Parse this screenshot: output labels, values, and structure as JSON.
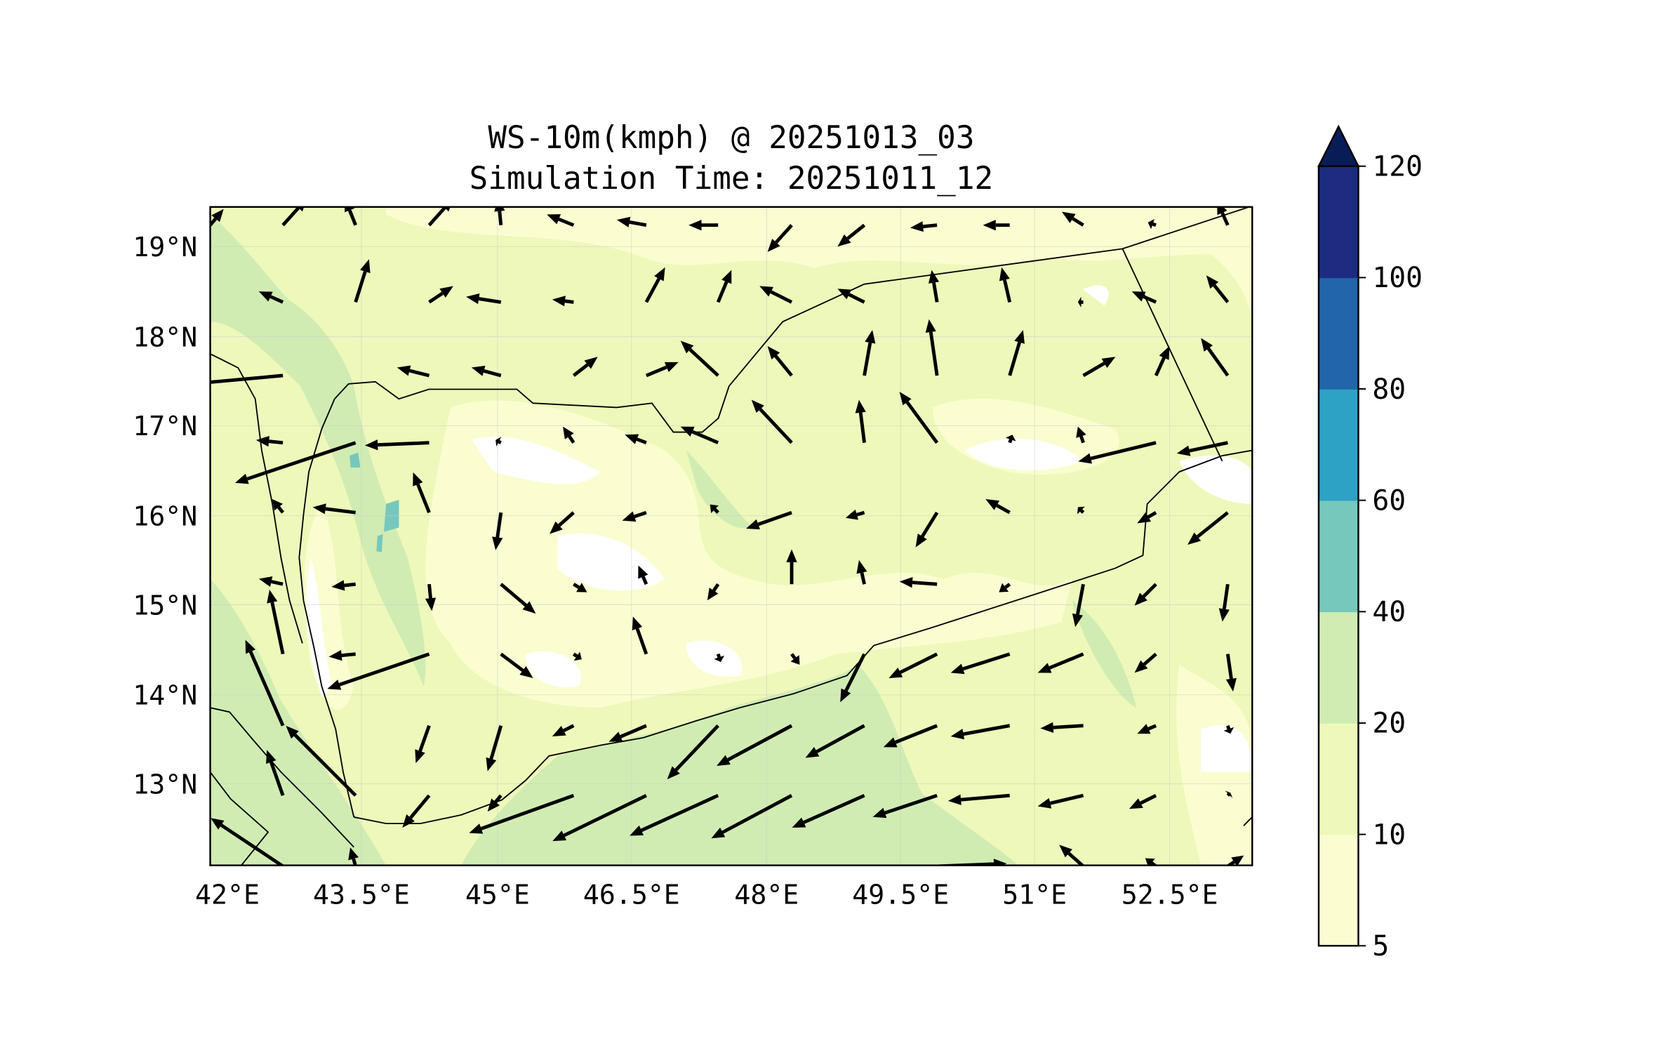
{
  "chart_data": {
    "type": "heatmap",
    "title_line1": "WS-10m(kmph) @ 20251013_03",
    "title_line2": "Simulation Time: 20251011_12",
    "xlabel": "",
    "ylabel": "",
    "xlim": [
      42.0,
      53.6
    ],
    "ylim": [
      12.09,
      19.44
    ],
    "grid": true,
    "x_ticks": [
      42,
      43.5,
      45,
      46.5,
      48,
      49.5,
      51,
      52.5
    ],
    "x_tick_labels": [
      "42°E",
      "43.5°E",
      "45°E",
      "46.5°E",
      "48°E",
      "49.5°E",
      "51°E",
      "52.5°E"
    ],
    "y_ticks": [
      19,
      18,
      17,
      16,
      15,
      14,
      13
    ],
    "y_tick_labels": [
      "19°N",
      "18°N",
      "17°N",
      "16°N",
      "15°N",
      "14°N",
      "13°N"
    ],
    "colorbar": {
      "levels": [
        5,
        10,
        20,
        40,
        60,
        80,
        100,
        120
      ],
      "tick_labels": [
        "5",
        "10",
        "20",
        "40",
        "60",
        "80",
        "100",
        "120"
      ],
      "colors": [
        "#fbfdd0",
        "#eef8ba",
        "#d0ecb3",
        "#76c8bc",
        "#2da2c4",
        "#2265aa",
        "#1d2c80"
      ],
      "extend_max_color": "#081d58",
      "extend": "max",
      "placement": "right"
    },
    "field_colors": {
      "below_5": "#ffffff",
      "5_10": "#fbfdd0",
      "10_20": "#eef8ba",
      "20_40": "#d0ecb3",
      "40_60": "#76c8bc"
    },
    "quiver": {
      "units": "kmph (approx.)",
      "lons": [
        42.0,
        42.81,
        43.62,
        44.44,
        45.24,
        46.05,
        46.86,
        47.66,
        48.48,
        49.29,
        50.1,
        50.91,
        51.73,
        52.54,
        53.34
      ],
      "lats": [
        19.24,
        18.38,
        17.56,
        16.81,
        16.03,
        15.23,
        14.45,
        13.65,
        12.87,
        12.08
      ],
      "u": [
        [
          5,
          9,
          -4,
          9,
          -1,
          -10,
          -11,
          -11,
          -9,
          -10,
          -10,
          -10,
          -8,
          -3,
          -4
        ],
        [
          null,
          -9,
          5,
          9,
          -13,
          -8,
          7,
          5,
          -12,
          -10,
          -2,
          -3,
          -2,
          -9,
          -8
        ],
        [
          -18,
          -33,
          null,
          -12,
          -11,
          9,
          12,
          -14,
          -9,
          3,
          -3,
          5,
          12,
          5,
          -10
        ],
        [
          null,
          -10,
          -45,
          -24,
          -2,
          -4,
          -8,
          -14,
          -15,
          -2,
          -14,
          1,
          -2,
          -29,
          -19
        ],
        [
          null,
          -4,
          -16,
          -6,
          -2,
          -9,
          -9,
          -3,
          -17,
          -7,
          -8,
          -9,
          -2,
          -7,
          -15
        ],
        [
          null,
          -9,
          -9,
          1,
          13,
          5,
          -3,
          -4,
          0,
          -2,
          -14,
          -4,
          -3,
          -8,
          -2
        ],
        [
          null,
          -5,
          -10,
          -38,
          12,
          3,
          -5,
          1,
          3,
          -9,
          -18,
          -22,
          -17,
          -8,
          2
        ],
        [
          null,
          -14,
          null,
          -5,
          -5,
          -8,
          -14,
          -19,
          -28,
          -22,
          -20,
          -22,
          -16,
          -7,
          1
        ],
        [
          null,
          -6,
          -26,
          -10,
          -5,
          -39,
          -35,
          -33,
          -30,
          -27,
          -24,
          -23,
          -17,
          -10,
          1
        ],
        [
          null,
          -27,
          -2,
          null,
          null,
          null,
          null,
          null,
          null,
          null,
          26,
          null,
          -9,
          -4,
          6
        ]
      ],
      "v": [
        [
          6,
          10,
          10,
          10,
          10,
          4,
          2,
          0,
          -10,
          -8,
          -1,
          0,
          5,
          1,
          9
        ],
        [
          null,
          4,
          16,
          6,
          2,
          1,
          13,
          12,
          6,
          5,
          12,
          13,
          0,
          4,
          10
        ],
        [
          0,
          -3,
          null,
          3,
          3,
          7,
          5,
          13,
          11,
          17,
          21,
          17,
          7,
          11,
          14
        ],
        [
          null,
          1,
          -15,
          -1,
          1,
          6,
          3,
          6,
          16,
          16,
          19,
          3,
          6,
          -7,
          -4
        ],
        [
          null,
          5,
          2,
          15,
          -14,
          -8,
          -3,
          3,
          -6,
          -2,
          -13,
          5,
          2,
          -4,
          -12
        ],
        [
          null,
          2,
          -1,
          -10,
          -11,
          -3,
          7,
          -6,
          13,
          9,
          1,
          -3,
          -16,
          -8,
          -14
        ],
        [
          null,
          24,
          -1,
          -13,
          -9,
          -2,
          14,
          -3,
          -4,
          -18,
          -9,
          -7,
          -7,
          -7,
          -14
        ],
        [
          null,
          32,
          null,
          -14,
          -17,
          -4,
          -6,
          -20,
          -15,
          -12,
          -8,
          -4,
          -1,
          -3,
          -3
        ],
        [
          null,
          17,
          26,
          -12,
          -6,
          -14,
          -17,
          -15,
          -16,
          -12,
          -8,
          -2,
          -4,
          -5,
          1
        ],
        [
          null,
          18,
          7,
          null,
          null,
          null,
          null,
          null,
          null,
          null,
          1,
          null,
          8,
          3,
          4
        ]
      ]
    }
  }
}
